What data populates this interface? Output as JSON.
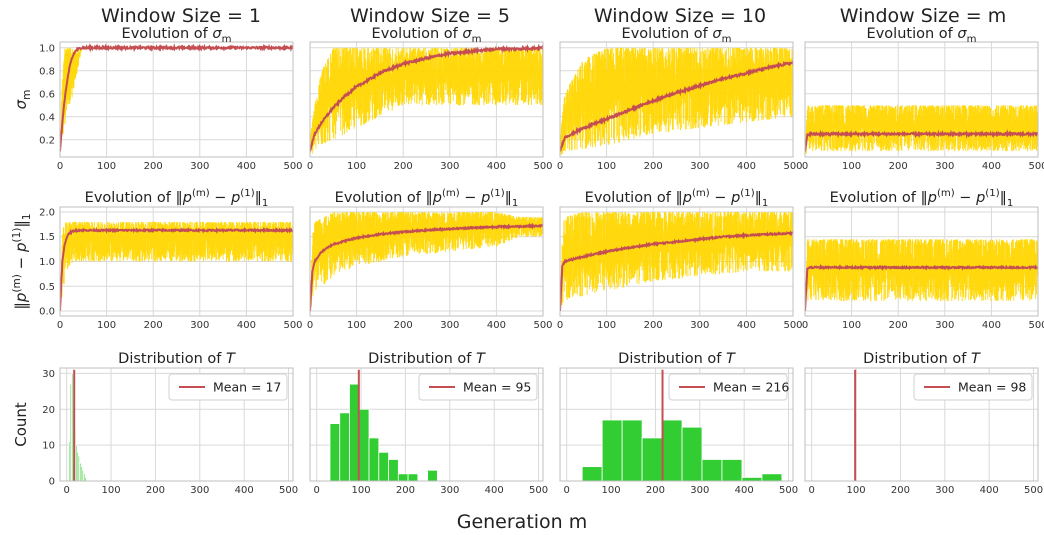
{
  "figure": {
    "xlabel": "Generation m",
    "column_titles": [
      "Window Size = 1",
      "Window Size = 5",
      "Window Size = 10",
      "Window Size = m"
    ],
    "row_titles": [
      "Evolution of σm",
      "Evolution of ‖p(m) − p(1)‖1",
      "Distribution of T"
    ],
    "row_ylabels": [
      "σm",
      "‖p(m) − p(1)‖1",
      "Count"
    ]
  },
  "colors": {
    "band": "#FFD700",
    "mean_line": "#C44E52",
    "hist": "#32CD32",
    "grid": "#D9D9D9",
    "frame": "#BFBFBF"
  },
  "chart_data": [
    {
      "type": "line",
      "panel": "sigma",
      "window": "1",
      "title": "Evolution of σm",
      "ylabel": "σm",
      "xlim": [
        0,
        500
      ],
      "ylim": [
        0.05,
        1.05
      ],
      "xticks": [
        0,
        100,
        200,
        300,
        400,
        500
      ],
      "yticks": [
        0.2,
        0.4,
        0.6,
        0.8,
        1.0
      ],
      "mean": {
        "x": [
          0,
          5,
          10,
          15,
          20,
          25,
          30,
          35,
          40,
          45,
          50,
          100,
          200,
          300,
          400,
          500
        ],
        "y": [
          0.1,
          0.35,
          0.55,
          0.7,
          0.82,
          0.9,
          0.95,
          0.98,
          0.99,
          1.0,
          1.0,
          1.0,
          1.0,
          1.0,
          1.0,
          1.0
        ]
      },
      "band": {
        "x": [
          0,
          5,
          10,
          15,
          20,
          25,
          30,
          35,
          40,
          45,
          50,
          60,
          100,
          500
        ],
        "low": [
          0.1,
          0.2,
          0.3,
          0.35,
          0.45,
          0.55,
          0.65,
          0.75,
          0.85,
          0.95,
          1.0,
          1.0,
          1.0,
          1.0
        ],
        "high": [
          0.1,
          0.75,
          1.0,
          1.0,
          1.0,
          1.0,
          1.0,
          1.0,
          1.0,
          1.0,
          1.0,
          1.0,
          1.0,
          1.0
        ]
      }
    },
    {
      "type": "line",
      "panel": "sigma",
      "window": "5",
      "title": "Evolution of σm",
      "xlim": [
        0,
        500
      ],
      "ylim": [
        0.05,
        1.05
      ],
      "xticks": [
        0,
        100,
        200,
        300,
        400,
        500
      ],
      "yticks": [
        0.2,
        0.4,
        0.6,
        0.8,
        1.0
      ],
      "mean": {
        "x": [
          0,
          10,
          25,
          50,
          75,
          100,
          150,
          200,
          250,
          300,
          350,
          400,
          450,
          500
        ],
        "y": [
          0.1,
          0.25,
          0.35,
          0.48,
          0.58,
          0.66,
          0.78,
          0.86,
          0.91,
          0.95,
          0.97,
          0.99,
          0.99,
          1.0
        ]
      },
      "band": {
        "x": [
          0,
          10,
          25,
          50,
          100,
          150,
          200,
          300,
          400,
          450,
          500
        ],
        "low": [
          0.05,
          0.1,
          0.15,
          0.2,
          0.3,
          0.4,
          0.5,
          0.5,
          0.5,
          0.5,
          0.5
        ],
        "high": [
          0.2,
          0.5,
          0.8,
          1.0,
          1.0,
          1.0,
          1.0,
          1.0,
          1.0,
          1.0,
          1.0
        ]
      }
    },
    {
      "type": "line",
      "panel": "sigma",
      "window": "10",
      "title": "Evolution of σm",
      "xlim": [
        0,
        500
      ],
      "ylim": [
        0.05,
        1.05
      ],
      "xticks": [
        0,
        100,
        200,
        300,
        400,
        500
      ],
      "yticks": [
        0.2,
        0.4,
        0.6,
        0.8,
        1.0
      ],
      "mean": {
        "x": [
          0,
          10,
          50,
          100,
          150,
          200,
          250,
          300,
          350,
          400,
          450,
          500
        ],
        "y": [
          0.1,
          0.22,
          0.3,
          0.38,
          0.46,
          0.54,
          0.61,
          0.67,
          0.73,
          0.78,
          0.83,
          0.87
        ]
      },
      "band": {
        "x": [
          0,
          10,
          50,
          100,
          200,
          300,
          400,
          500
        ],
        "low": [
          0.05,
          0.1,
          0.12,
          0.15,
          0.25,
          0.3,
          0.35,
          0.4
        ],
        "high": [
          0.2,
          0.6,
          0.9,
          1.0,
          1.0,
          1.0,
          1.0,
          1.0
        ]
      }
    },
    {
      "type": "line",
      "panel": "sigma",
      "window": "m",
      "title": "Evolution of σm",
      "xlim": [
        0,
        500
      ],
      "ylim": [
        0.05,
        1.05
      ],
      "xticks": [
        0,
        100,
        200,
        300,
        400,
        500
      ],
      "yticks": [
        0.2,
        0.4,
        0.6,
        0.8,
        1.0
      ],
      "mean": {
        "x": [
          0,
          5,
          10,
          500
        ],
        "y": [
          0.1,
          0.24,
          0.25,
          0.25
        ]
      },
      "band": {
        "x": [
          0,
          5,
          10,
          500
        ],
        "low": [
          0.05,
          0.1,
          0.1,
          0.1
        ],
        "high": [
          0.1,
          0.5,
          0.5,
          0.5
        ]
      }
    },
    {
      "type": "line",
      "panel": "diff",
      "window": "1",
      "title": "Evolution of ‖p(m) − p(1)‖1",
      "ylabel": "‖p(m) − p(1)‖1",
      "xlim": [
        0,
        500
      ],
      "ylim": [
        -0.1,
        2.1
      ],
      "xticks": [
        0,
        100,
        200,
        300,
        400,
        500
      ],
      "yticks": [
        0.0,
        0.5,
        1.0,
        1.5,
        2.0
      ],
      "mean": {
        "x": [
          0,
          5,
          10,
          15,
          20,
          25,
          30,
          40,
          50,
          100,
          500
        ],
        "y": [
          0.0,
          1.0,
          1.35,
          1.5,
          1.57,
          1.6,
          1.62,
          1.63,
          1.63,
          1.63,
          1.63
        ]
      },
      "band": {
        "x": [
          0,
          5,
          10,
          20,
          30,
          40,
          100,
          500
        ],
        "low": [
          0.0,
          0.2,
          0.6,
          0.9,
          1.0,
          1.0,
          1.0,
          1.0
        ],
        "high": [
          0.0,
          1.6,
          1.8,
          1.8,
          1.8,
          1.8,
          1.8,
          1.8
        ]
      }
    },
    {
      "type": "line",
      "panel": "diff",
      "window": "5",
      "title": "Evolution of ‖p(m) − p(1)‖1",
      "xlim": [
        0,
        500
      ],
      "ylim": [
        -0.1,
        2.1
      ],
      "xticks": [
        0,
        100,
        200,
        300,
        400,
        500
      ],
      "yticks": [
        0.0,
        0.5,
        1.0,
        1.5,
        2.0
      ],
      "mean": {
        "x": [
          0,
          5,
          10,
          25,
          50,
          100,
          150,
          200,
          300,
          400,
          500
        ],
        "y": [
          0.0,
          0.8,
          1.0,
          1.2,
          1.35,
          1.48,
          1.55,
          1.6,
          1.66,
          1.7,
          1.72
        ]
      },
      "band": {
        "x": [
          0,
          5,
          10,
          50,
          100,
          200,
          300,
          400,
          450,
          500
        ],
        "low": [
          0.0,
          0.1,
          0.3,
          0.7,
          0.9,
          1.1,
          1.2,
          1.3,
          1.5,
          1.5
        ],
        "high": [
          0.0,
          1.5,
          1.8,
          2.0,
          2.0,
          2.0,
          2.0,
          2.0,
          1.9,
          1.9
        ]
      }
    },
    {
      "type": "line",
      "panel": "diff",
      "window": "10",
      "title": "Evolution of ‖p(m) − p(1)‖1",
      "xlim": [
        0,
        500
      ],
      "ylim": [
        -0.1,
        2.1
      ],
      "xticks": [
        0,
        100,
        200,
        300,
        400,
        500
      ],
      "yticks": [
        0.0,
        0.5,
        1.0,
        1.5,
        2.0
      ],
      "mean": {
        "x": [
          0,
          5,
          10,
          50,
          100,
          150,
          200,
          250,
          300,
          350,
          400,
          450,
          500
        ],
        "y": [
          0.0,
          0.9,
          1.0,
          1.1,
          1.2,
          1.28,
          1.35,
          1.4,
          1.45,
          1.5,
          1.53,
          1.55,
          1.57
        ]
      },
      "band": {
        "x": [
          0,
          5,
          10,
          50,
          100,
          200,
          300,
          400,
          500
        ],
        "low": [
          0.0,
          0.1,
          0.2,
          0.3,
          0.4,
          0.6,
          0.7,
          0.8,
          0.8
        ],
        "high": [
          0.0,
          1.6,
          1.9,
          2.0,
          2.0,
          2.0,
          2.0,
          2.0,
          2.0
        ]
      }
    },
    {
      "type": "line",
      "panel": "diff",
      "window": "m",
      "title": "Evolution of ‖p(m) − p(1)‖1",
      "xlim": [
        0,
        500
      ],
      "ylim": [
        -0.1,
        2.1
      ],
      "xticks": [
        0,
        100,
        200,
        300,
        400,
        500
      ],
      "yticks": [
        0.0,
        0.5,
        1.0,
        1.5,
        2.0
      ],
      "mean": {
        "x": [
          0,
          5,
          10,
          500
        ],
        "y": [
          0.0,
          0.85,
          0.88,
          0.88
        ]
      },
      "band": {
        "x": [
          0,
          5,
          10,
          500
        ],
        "low": [
          0.0,
          0.2,
          0.2,
          0.2
        ],
        "high": [
          0.0,
          1.45,
          1.45,
          1.45
        ]
      }
    },
    {
      "type": "bar",
      "panel": "hist",
      "window": "1",
      "title": "Distribution of T",
      "ylabel": "Count",
      "xlim": [
        -15,
        510
      ],
      "ylim": [
        0,
        31.5
      ],
      "xticks": [
        0,
        100,
        200,
        300,
        400,
        500
      ],
      "yticks": [
        0,
        10,
        20,
        30
      ],
      "bins": [
        [
          5,
          8,
          11
        ],
        [
          8,
          11,
          27
        ],
        [
          11,
          14,
          30
        ],
        [
          14,
          17,
          21
        ],
        [
          17,
          20,
          14
        ],
        [
          20,
          23,
          10
        ],
        [
          23,
          26,
          8
        ],
        [
          26,
          29,
          7
        ],
        [
          29,
          32,
          5
        ],
        [
          32,
          35,
          4
        ],
        [
          35,
          38,
          3
        ],
        [
          38,
          41,
          2
        ],
        [
          41,
          44,
          1
        ]
      ],
      "mean_value": 17,
      "legend": "Mean = 17"
    },
    {
      "type": "bar",
      "panel": "hist",
      "window": "5",
      "title": "Distribution of T",
      "xlim": [
        -15,
        510
      ],
      "ylim": [
        0,
        31.5
      ],
      "xticks": [
        0,
        100,
        200,
        300,
        400,
        500
      ],
      "yticks": [
        0,
        10,
        20,
        30
      ],
      "bins": [
        [
          30,
          52,
          16
        ],
        [
          52,
          74,
          19
        ],
        [
          74,
          96,
          27
        ],
        [
          96,
          118,
          20
        ],
        [
          118,
          140,
          12
        ],
        [
          140,
          162,
          8
        ],
        [
          162,
          184,
          6
        ],
        [
          184,
          206,
          2
        ],
        [
          206,
          228,
          2
        ],
        [
          250,
          272,
          3
        ]
      ],
      "mean_value": 95,
      "legend": "Mean = 95"
    },
    {
      "type": "bar",
      "panel": "hist",
      "window": "10",
      "title": "Distribution of T",
      "xlim": [
        -15,
        510
      ],
      "ylim": [
        0,
        31.5
      ],
      "xticks": [
        0,
        100,
        200,
        300,
        400,
        500
      ],
      "yticks": [
        0,
        10,
        20,
        30
      ],
      "bins": [
        [
          35,
          80,
          4
        ],
        [
          80,
          125,
          17
        ],
        [
          125,
          170,
          17
        ],
        [
          170,
          215,
          12
        ],
        [
          215,
          260,
          17
        ],
        [
          260,
          305,
          15
        ],
        [
          305,
          350,
          6
        ],
        [
          350,
          395,
          6
        ],
        [
          395,
          440,
          1
        ],
        [
          440,
          485,
          2
        ]
      ],
      "mean_value": 216,
      "legend": "Mean = 216"
    },
    {
      "type": "bar",
      "panel": "hist",
      "window": "m",
      "title": "Distribution of T",
      "xlim": [
        -15,
        510
      ],
      "ylim": [
        0,
        31.5
      ],
      "xticks": [
        0,
        100,
        200,
        300,
        400,
        500
      ],
      "yticks": [
        0,
        10,
        20,
        30
      ],
      "bins": [],
      "mean_value": 98,
      "legend": "Mean = 98"
    }
  ]
}
